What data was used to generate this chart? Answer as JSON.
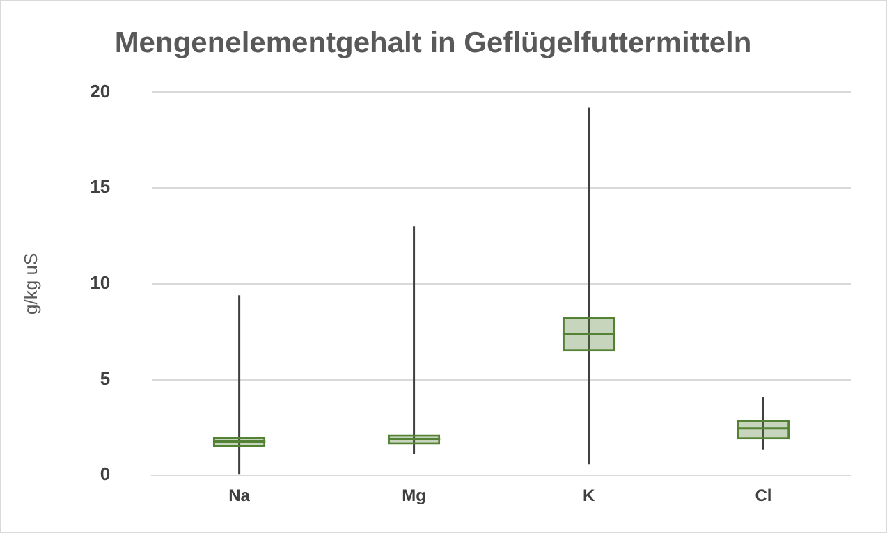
{
  "chart_data": {
    "type": "box",
    "title": "Mengenelementgehalt in Geflügelfuttermitteln",
    "ylabel": "g/kg uS",
    "categories": [
      "Na",
      "Mg",
      "K",
      "Cl"
    ],
    "boxes": [
      {
        "low": 0.07,
        "q1": 1.46,
        "median": 1.77,
        "q3": 2.0,
        "high": 9.4
      },
      {
        "low": 1.11,
        "q1": 1.62,
        "median": 1.89,
        "q3": 2.13,
        "high": 13.0
      },
      {
        "low": 0.58,
        "q1": 6.46,
        "median": 7.36,
        "q3": 8.28,
        "high": 19.2
      },
      {
        "low": 1.36,
        "q1": 1.89,
        "median": 2.45,
        "q3": 2.91,
        "high": 4.08
      }
    ],
    "color": "#548235",
    "ylim": [
      0,
      20
    ],
    "yticks": [
      0,
      5,
      10,
      15,
      20
    ],
    "grid": "y",
    "legend": false
  }
}
